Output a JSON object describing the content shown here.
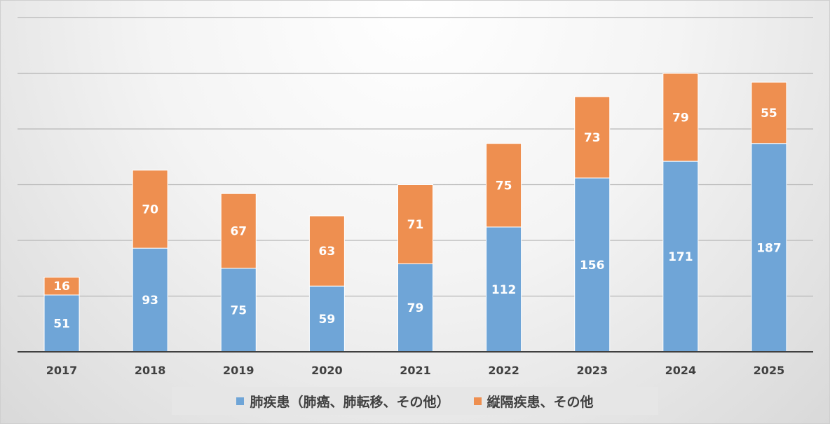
{
  "chart_data": {
    "type": "bar",
    "stacked": true,
    "categories": [
      "2017",
      "2018",
      "2019",
      "2020",
      "2021",
      "2022",
      "2023",
      "2024",
      "2025"
    ],
    "series": [
      {
        "name": "肺疾患（肺癌、肺転移、その他）",
        "color": "#6fa5d7",
        "values": [
          51,
          93,
          75,
          59,
          79,
          112,
          156,
          171,
          187
        ]
      },
      {
        "name": "縦隔疾患、その他",
        "color": "#ee8f50",
        "values": [
          16,
          70,
          67,
          63,
          71,
          75,
          73,
          79,
          55
        ]
      }
    ],
    "ylim": [
      0,
      300
    ],
    "y_gridlines": [
      50,
      100,
      150,
      200,
      250,
      300
    ],
    "grid": true,
    "y_tick_labels_shown": false,
    "data_labels": true,
    "legend_position": "bottom"
  },
  "legend": {
    "items": [
      {
        "label": "肺疾患（肺癌、肺転移、その他）",
        "color": "#6fa5d7"
      },
      {
        "label": "縦隔疾患、その他",
        "color": "#ee8f50"
      }
    ]
  }
}
